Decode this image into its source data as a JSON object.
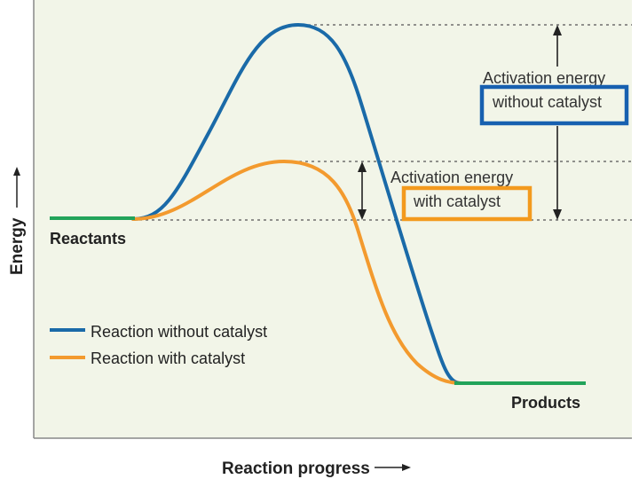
{
  "axes": {
    "y_label": "Energy",
    "x_label": "Reaction progress"
  },
  "labels": {
    "reactants": "Reactants",
    "products": "Products",
    "ea_uncatalyzed_line1": "Activation energy",
    "ea_uncatalyzed_line2": "without catalyst",
    "ea_catalyzed_line1": "Activation energy",
    "ea_catalyzed_line2": "with catalyst"
  },
  "legend": {
    "uncatalyzed": "Reaction without catalyst",
    "catalyzed": "Reaction with catalyst"
  },
  "colors": {
    "panel": "#f2f5e8",
    "uncatalyzed_curve": "#1a6aa8",
    "catalyzed_curve": "#f39a2e",
    "baseline": "#22a35a",
    "highlight_uncatalyzed": "#1760b0",
    "highlight_catalyzed": "#f39a1e",
    "text": "#222222"
  }
}
